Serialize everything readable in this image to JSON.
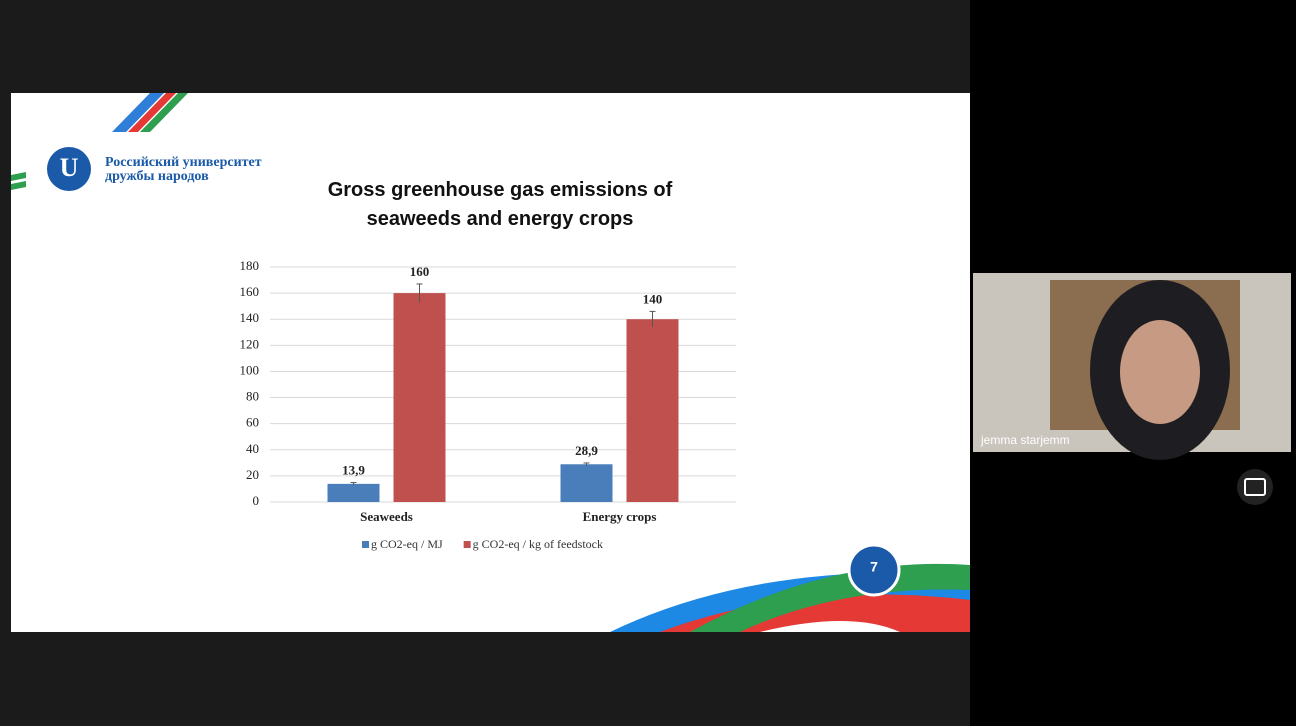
{
  "slide": {
    "university": [
      "Российский университет",
      "дружбы народов"
    ],
    "page_number": "7"
  },
  "participant": {
    "name": "jemma starjemm"
  },
  "chart_data": {
    "type": "bar",
    "title": "Gross greenhouse gas emissions of seaweeds and energy crops",
    "categories": [
      "Seaweeds",
      "Energy crops"
    ],
    "series": [
      {
        "name": "g CO2-eq / MJ",
        "color": "#4a7ebb",
        "values": [
          13.9,
          28.9
        ],
        "value_labels": [
          "13,9",
          "28,9"
        ],
        "errors": [
          1,
          1
        ]
      },
      {
        "name": "g CO2-eq / kg of feedstock",
        "color": "#c0504d",
        "values": [
          160,
          140
        ],
        "errors": [
          7,
          6
        ]
      }
    ],
    "ylim": [
      0,
      180
    ],
    "yticks": [
      0,
      20,
      40,
      60,
      80,
      100,
      120,
      140,
      160,
      180
    ],
    "grid": true,
    "legend": "bottom"
  }
}
